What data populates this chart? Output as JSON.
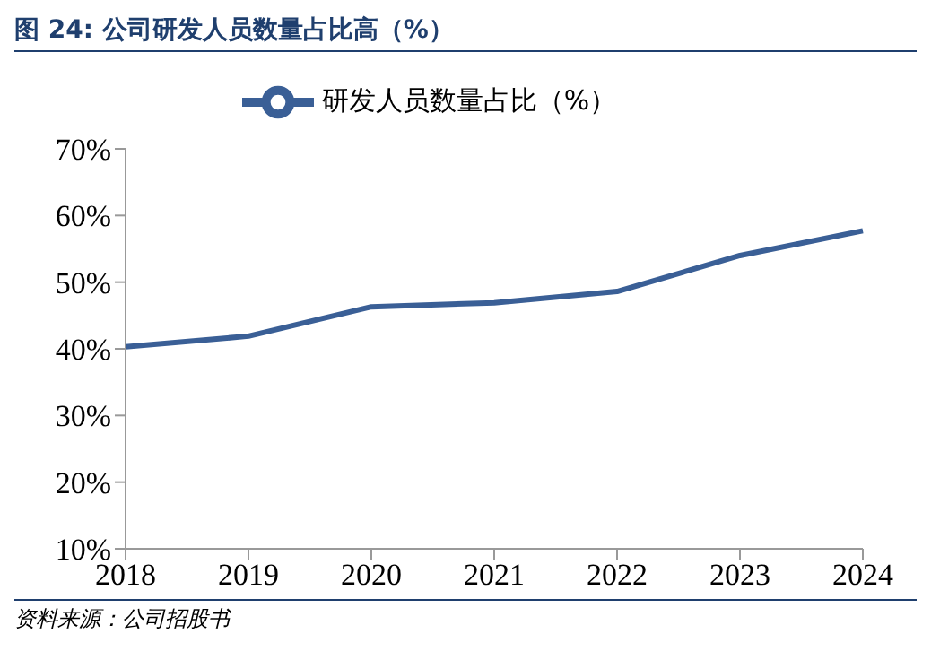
{
  "chart_data": {
    "type": "line",
    "title": "图 24:  公司研发人员数量占比高（%）",
    "categories": [
      "2018",
      "2019",
      "2020",
      "2021",
      "2022",
      "2023",
      "2024"
    ],
    "series": [
      {
        "name": "研发人员数量占比（%）",
        "color": "#3a5f96",
        "values": [
          40.3,
          41.9,
          46.3,
          46.9,
          48.6,
          54.0,
          57.7
        ]
      }
    ],
    "ylim": [
      10,
      70
    ],
    "yticks": [
      {
        "value": 10,
        "label": "10%"
      },
      {
        "value": 20,
        "label": "20%"
      },
      {
        "value": 30,
        "label": "30%"
      },
      {
        "value": 40,
        "label": "40%"
      },
      {
        "value": 50,
        "label": "50%"
      },
      {
        "value": 60,
        "label": "60%"
      },
      {
        "value": 70,
        "label": "70%"
      }
    ],
    "grid": false,
    "legend": "top",
    "marker": "none",
    "line_style": "solid",
    "annotations": [
      "资料来源：公司招股书"
    ]
  }
}
